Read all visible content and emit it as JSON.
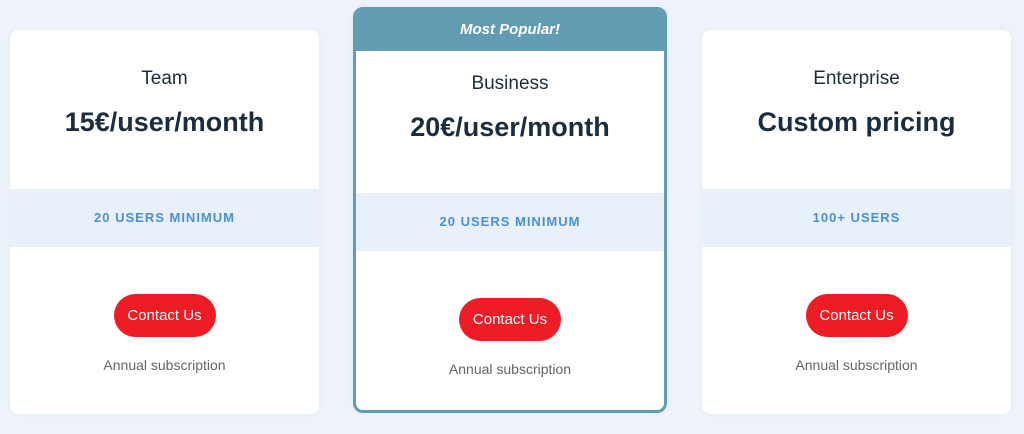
{
  "plans": [
    {
      "name": "Team",
      "price": "15€/user/month",
      "users": "20 USERS MINIMUM",
      "cta": "Contact Us",
      "note": "Annual subscription"
    },
    {
      "badge": "Most Popular!",
      "name": "Business",
      "price": "20€/user/month",
      "users": "20 USERS MINIMUM",
      "cta": "Contact Us",
      "note": "Annual subscription"
    },
    {
      "name": "Enterprise",
      "price": "Custom pricing",
      "users": "100+ USERS",
      "cta": "Contact Us",
      "note": "Annual subscription"
    }
  ],
  "colors": {
    "accent": "#ee1c24",
    "highlight": "#619cb3",
    "band_text": "#4a8fdd",
    "background": "#eef3fb"
  }
}
